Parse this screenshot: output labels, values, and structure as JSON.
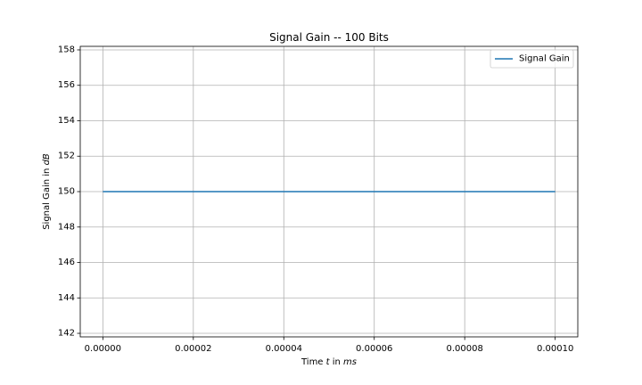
{
  "chart_data": {
    "type": "line",
    "title": "Signal Gain -- 100 Bits",
    "xlabel_parts": {
      "pre": "Time ",
      "var": "t",
      "mid": " in ",
      "unit": "ms"
    },
    "ylabel_parts": {
      "pre": "Signal Gain in ",
      "unit": "dB"
    },
    "xlim": [
      -5e-06,
      0.000105
    ],
    "ylim": [
      141.8,
      158.2
    ],
    "x_ticks": [
      0.0,
      2e-05,
      4e-05,
      6e-05,
      8e-05,
      0.0001
    ],
    "x_tick_labels": [
      "0.00000",
      "0.00002",
      "0.00004",
      "0.00006",
      "0.00008",
      "0.00010"
    ],
    "y_ticks": [
      142,
      144,
      146,
      148,
      150,
      152,
      154,
      156,
      158
    ],
    "y_tick_labels": [
      "142",
      "144",
      "146",
      "148",
      "150",
      "152",
      "154",
      "156",
      "158"
    ],
    "grid": true,
    "legend_position": "top-right",
    "series": [
      {
        "name": "Signal Gain",
        "color": "#1f77b4",
        "x": [
          0.0,
          0.0001
        ],
        "y": [
          150,
          150
        ]
      }
    ]
  }
}
